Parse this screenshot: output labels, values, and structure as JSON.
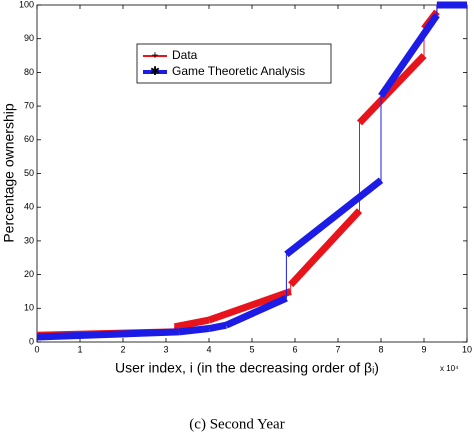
{
  "chart_data": {
    "type": "line",
    "x_label": "User index, i (in the decreasing order of βᵢ)",
    "y_label": "Percentage ownership",
    "x_multiplier": "x 10⁴",
    "caption": "(c) Second Year",
    "xlim": [
      0,
      10
    ],
    "xticks": [
      0,
      1,
      2,
      3,
      4,
      5,
      6,
      7,
      8,
      9,
      10
    ],
    "ylim": [
      0,
      100
    ],
    "yticks": [
      0,
      10,
      20,
      30,
      40,
      50,
      60,
      70,
      80,
      90,
      100
    ],
    "series": [
      {
        "name": "Data",
        "color": "#e8141c",
        "x": [
          0,
          3.2,
          3.2,
          4,
          5.9,
          5.9,
          7.5,
          7.5,
          9,
          9,
          9.3,
          9.3,
          10
        ],
        "values": [
          2,
          3,
          4.5,
          6.5,
          15,
          17,
          39,
          65,
          85,
          93,
          98,
          100,
          100
        ]
      },
      {
        "name": "Game Theoretic Analysis",
        "color": "#1c1ce6",
        "x": [
          0,
          3.3,
          4,
          4.4,
          5.8,
          5.8,
          8,
          8,
          9.3,
          9.3,
          10
        ],
        "values": [
          1.5,
          3,
          4,
          5,
          13,
          26,
          48,
          73,
          97,
          100,
          100
        ]
      }
    ]
  }
}
